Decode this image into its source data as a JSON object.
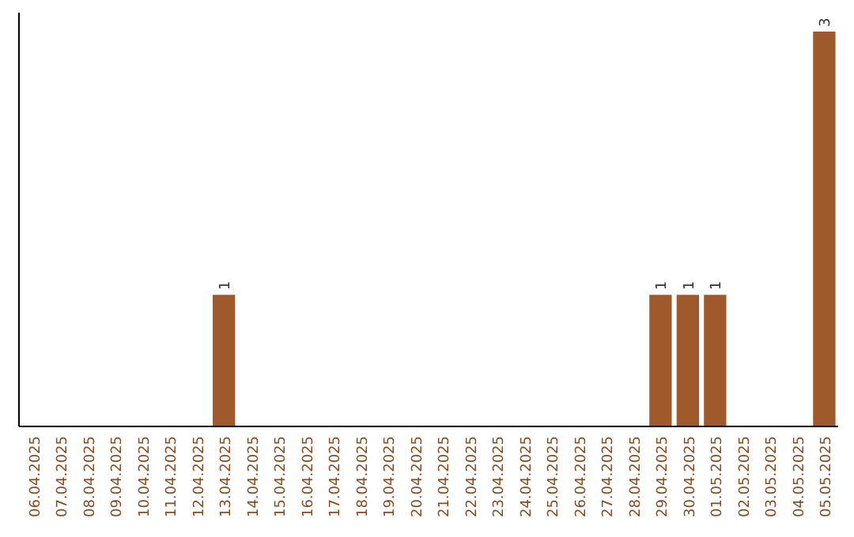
{
  "chart_data": {
    "type": "bar",
    "categories": [
      "06.04.2025",
      "07.04.2025",
      "08.04.2025",
      "09.04.2025",
      "10.04.2025",
      "11.04.2025",
      "12.04.2025",
      "13.04.2025",
      "14.04.2025",
      "15.04.2025",
      "16.04.2025",
      "17.04.2025",
      "18.04.2025",
      "19.04.2025",
      "20.04.2025",
      "21.04.2025",
      "22.04.2025",
      "23.04.2025",
      "24.04.2025",
      "25.04.2025",
      "26.04.2025",
      "27.04.2025",
      "28.04.2025",
      "29.04.2025",
      "30.04.2025",
      "01.05.2025",
      "02.05.2025",
      "03.05.2025",
      "04.05.2025",
      "05.05.2025"
    ],
    "values": [
      0,
      0,
      0,
      0,
      0,
      0,
      0,
      1,
      0,
      0,
      0,
      0,
      0,
      0,
      0,
      0,
      0,
      0,
      0,
      0,
      0,
      0,
      0,
      1,
      1,
      1,
      0,
      0,
      0,
      3
    ],
    "value_labels": [
      null,
      null,
      null,
      null,
      null,
      null,
      null,
      "1",
      null,
      null,
      null,
      null,
      null,
      null,
      null,
      null,
      null,
      null,
      null,
      null,
      null,
      null,
      null,
      "1",
      "1",
      "1",
      null,
      null,
      null,
      "3"
    ],
    "color": "#a0592b",
    "tick_labels": "x"
  }
}
